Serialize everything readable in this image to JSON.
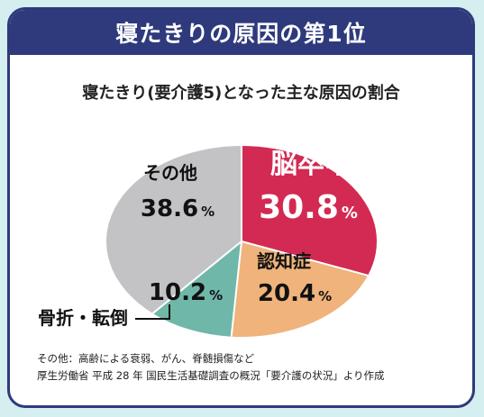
{
  "header": {
    "title": "寝たきりの原因の第1位"
  },
  "chart_data": {
    "type": "pie",
    "title": "寝たきり(要介護5)となった主な原因の割合",
    "slices": [
      {
        "label": "脳卒中",
        "value": 30.8,
        "value_label": "30.8",
        "color": "#d22a52"
      },
      {
        "label": "認知症",
        "value": 20.4,
        "value_label": "20.4",
        "color": "#efb37b"
      },
      {
        "label": "骨折・転倒",
        "value": 10.2,
        "value_label": "10.2",
        "color": "#6fb7a9"
      },
      {
        "label": "その他",
        "value": 38.6,
        "value_label": "38.6",
        "color": "#c3c3c6"
      }
    ],
    "unit": "%"
  },
  "footnotes": [
    "その他：高齢による衰弱、がん、脊髄損傷など",
    "厚生労働省 平成 28 年 国民生活基礎調査の概況「要介護の状況」より作成"
  ]
}
